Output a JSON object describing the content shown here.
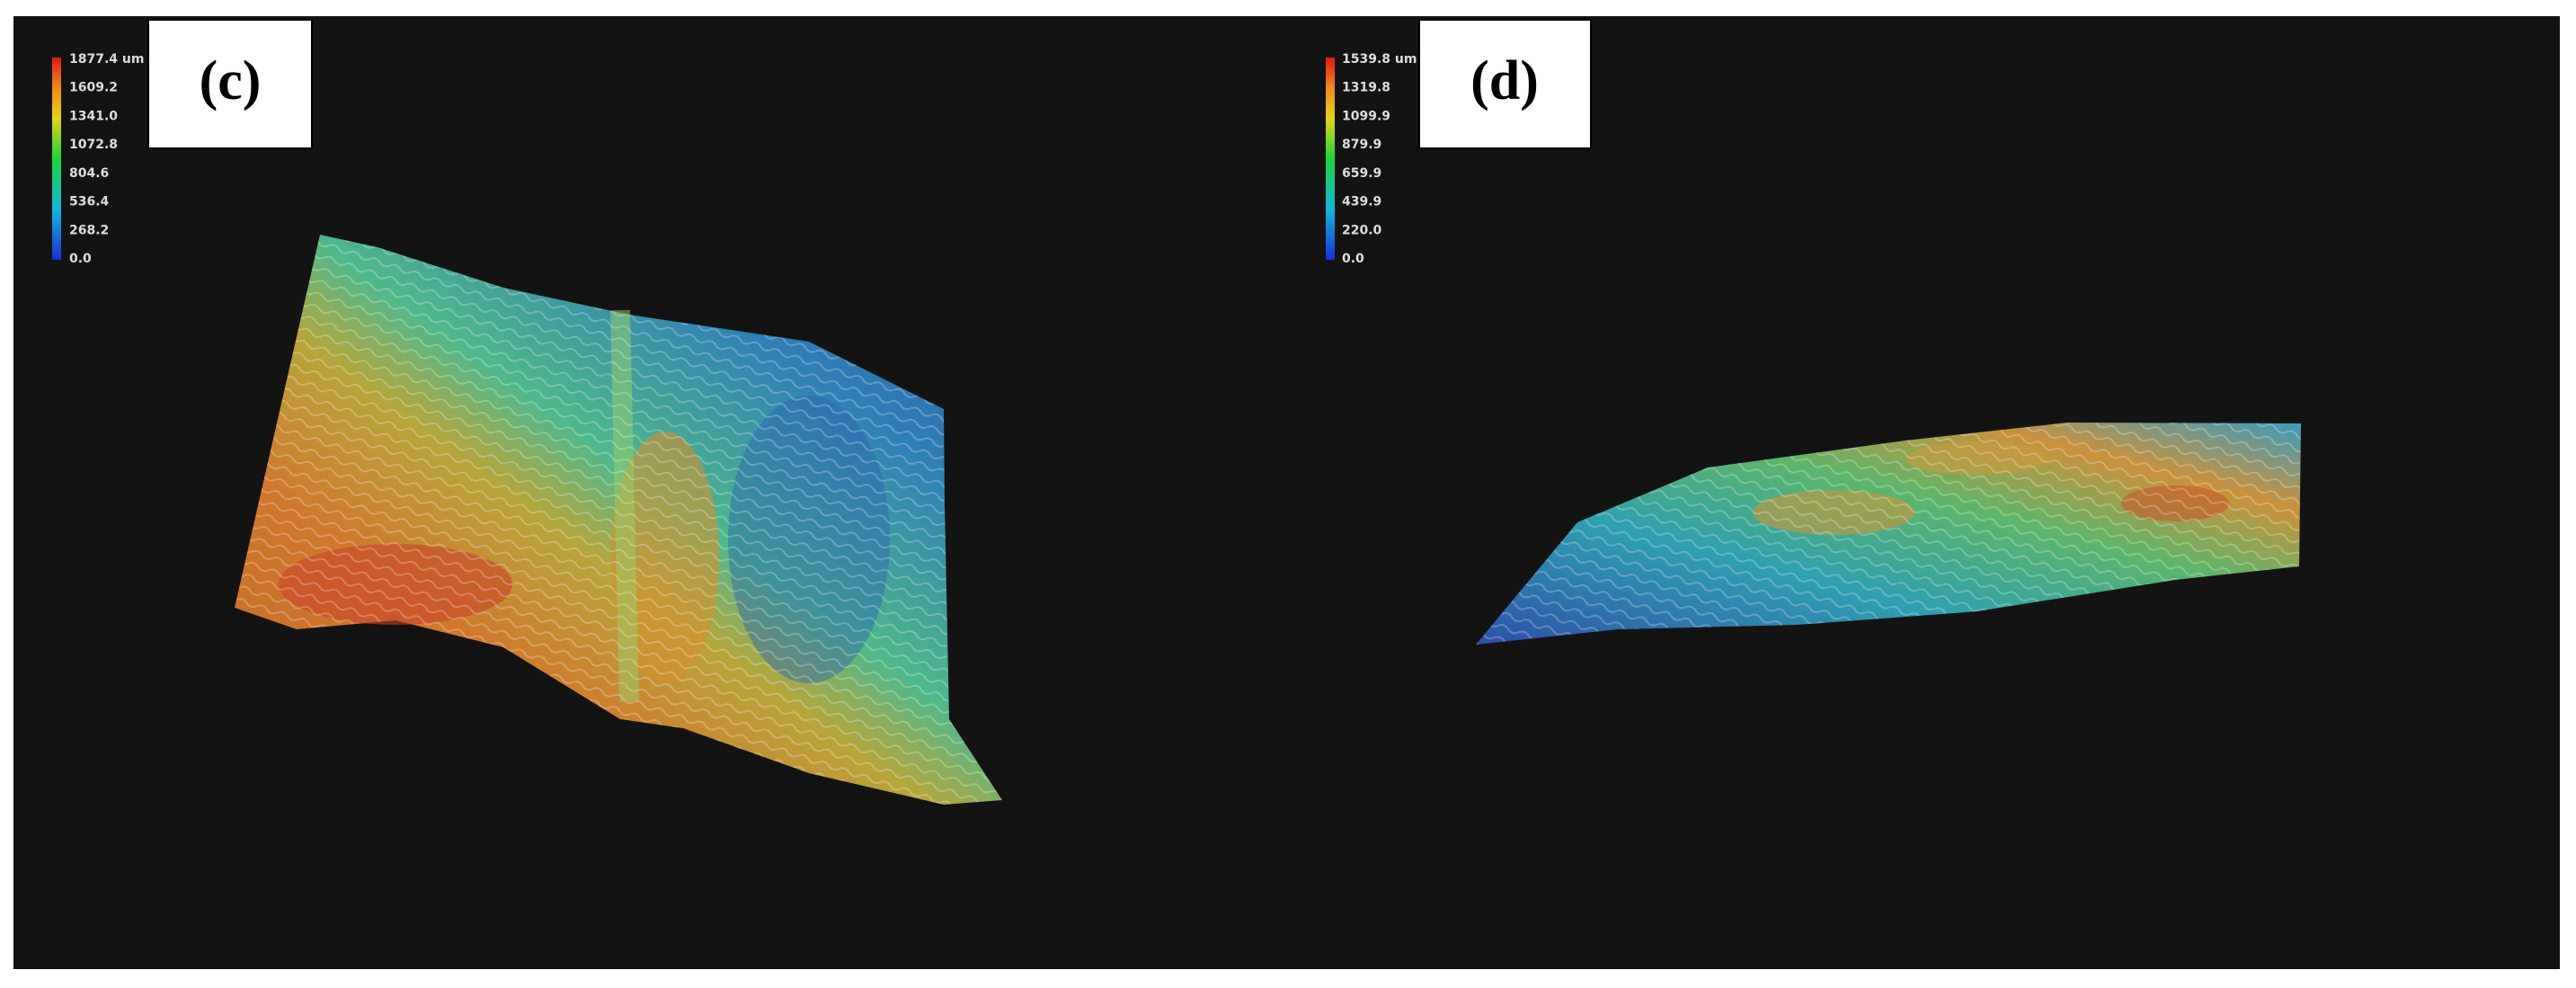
{
  "panels": [
    {
      "label": "(c)",
      "colorbar": {
        "labels": [
          "1877.4 um",
          "1609.2",
          "1341.0",
          "1072.8",
          "804.6",
          "536.4",
          "268.2",
          "0.0"
        ]
      }
    },
    {
      "label": "(d)",
      "colorbar": {
        "labels": [
          "1539.8 um",
          "1319.8",
          "1099.9",
          "879.9",
          "659.9",
          "439.9",
          "220.0",
          "0.0"
        ]
      }
    }
  ]
}
